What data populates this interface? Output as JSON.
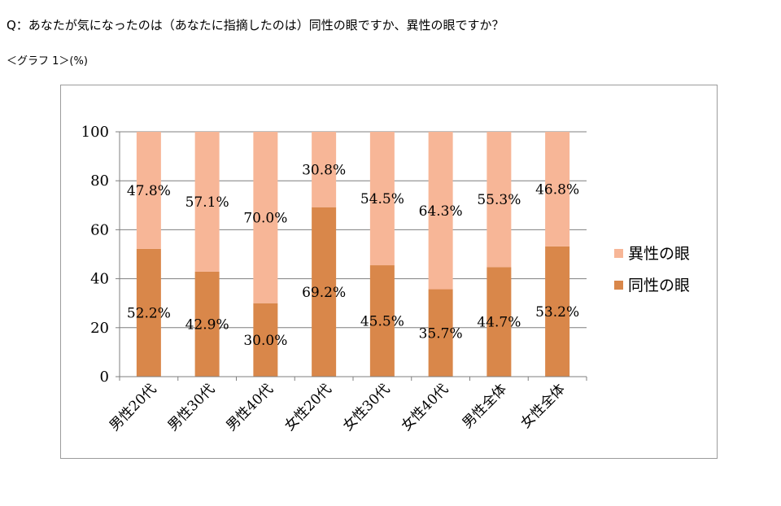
{
  "header": {
    "question": "Q：あなたが気になったのは（あなたに指摘したのは）同性の眼ですか、異性の眼ですか？",
    "graph_caption": "＜グラフ 1＞(%)"
  },
  "colors": {
    "same_sex": "#d9874a",
    "opposite_sex": "#f7b697",
    "grid": "#7f7f7f",
    "axis": "#7f7f7f"
  },
  "chart_data": {
    "type": "bar",
    "stacked": true,
    "categories": [
      "男性20代",
      "男性30代",
      "男性40代",
      "女性20代",
      "女性30代",
      "女性40代",
      "男性全体",
      "女性全体"
    ],
    "series": [
      {
        "name": "同性の眼",
        "color": "#d9874a",
        "values": [
          52.2,
          42.9,
          30.0,
          69.2,
          45.5,
          35.7,
          44.7,
          53.2
        ],
        "labels": [
          "52.2%",
          "42.9%",
          "30.0%",
          "69.2%",
          "45.5%",
          "35.7%",
          "44.7%",
          "53.2%"
        ]
      },
      {
        "name": "異性の眼",
        "color": "#f7b697",
        "values": [
          47.8,
          57.1,
          70.0,
          30.8,
          54.5,
          64.3,
          55.3,
          46.8
        ],
        "labels": [
          "47.8%",
          "57.1%",
          "70.0%",
          "30.8%",
          "54.5%",
          "64.3%",
          "55.3%",
          "46.8%"
        ]
      }
    ],
    "ylim": [
      0,
      100
    ],
    "yticks": [
      0,
      20,
      40,
      60,
      80,
      100
    ],
    "grid": true,
    "legend": "right"
  }
}
